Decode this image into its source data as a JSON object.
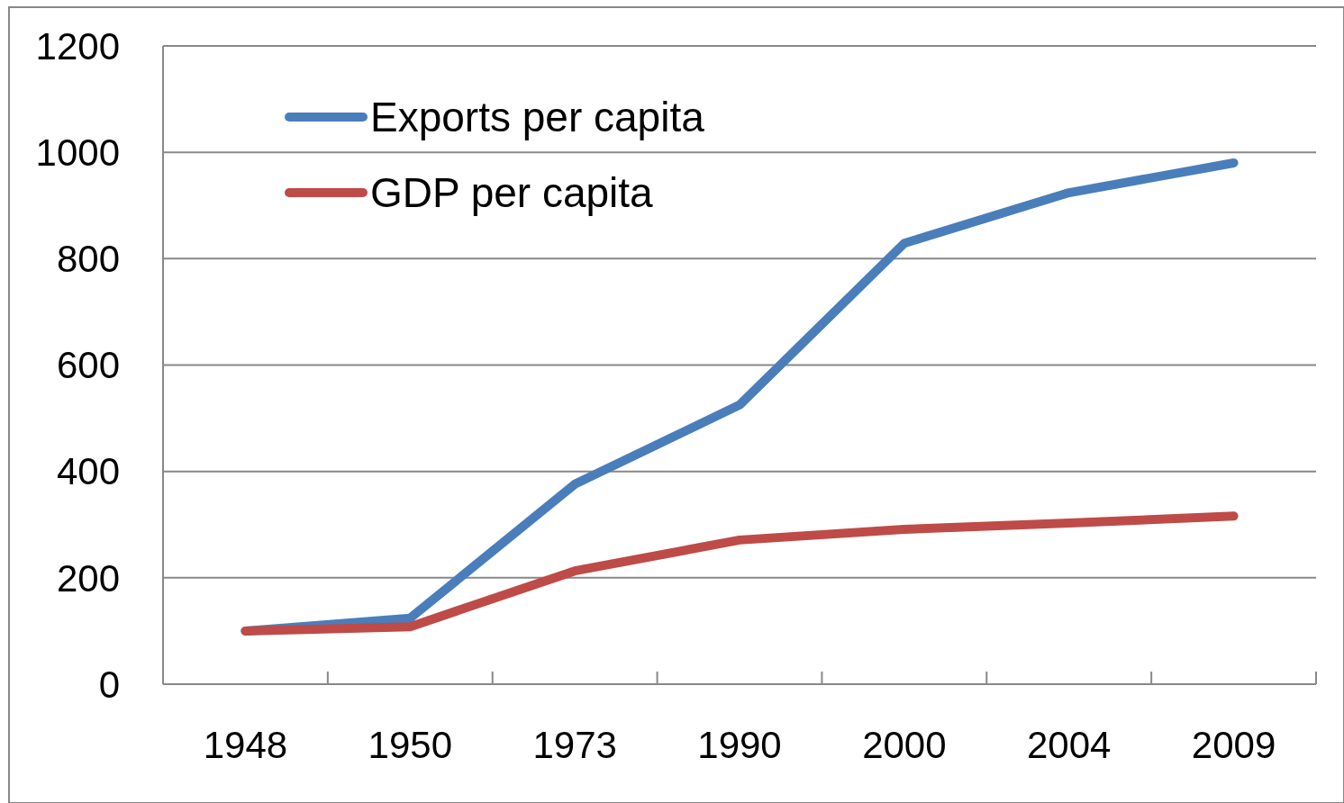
{
  "chart_data": {
    "type": "line",
    "categories": [
      "1948",
      "1950",
      "1973",
      "1990",
      "2000",
      "2004",
      "2009"
    ],
    "series": [
      {
        "name": "Exports per capita",
        "color": "#4a7ebb",
        "values": [
          100,
          124,
          376,
          525,
          829,
          924,
          980
        ]
      },
      {
        "name": "GDP per capita",
        "color": "#be4b48",
        "values": [
          100,
          108,
          213,
          271,
          291,
          303,
          316
        ]
      }
    ],
    "ylim": [
      0,
      1200
    ],
    "yticks": [
      0,
      200,
      400,
      600,
      800,
      1000,
      1200
    ],
    "grid": "y",
    "legend": "top left",
    "marker": "none",
    "line_style": "solid"
  }
}
